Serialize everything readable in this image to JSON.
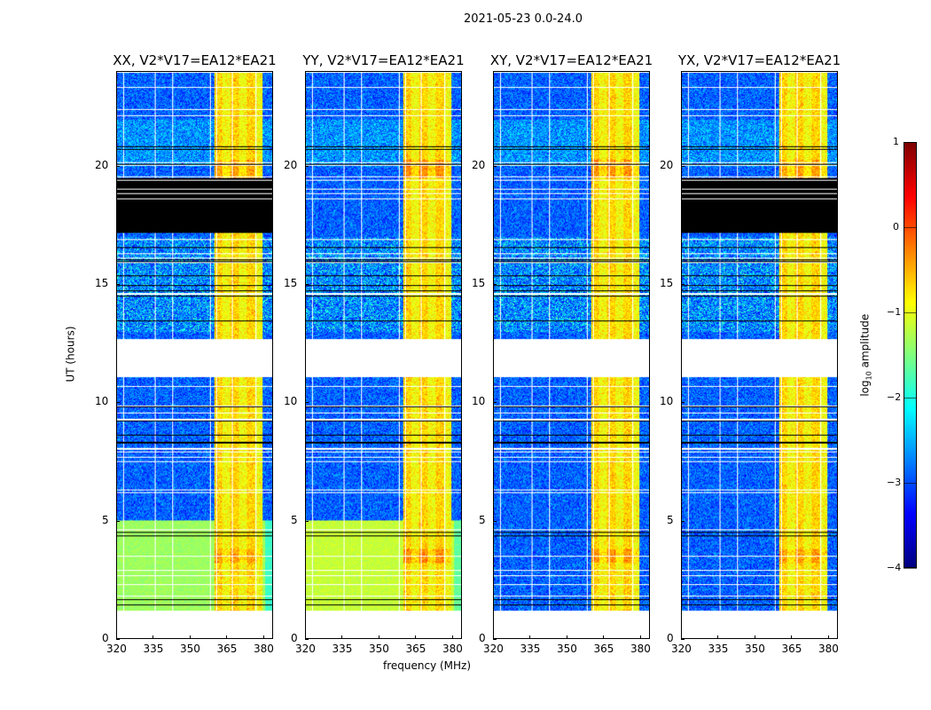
{
  "title": "2021-05-23 0.0-24.0",
  "chart_data": {
    "type": "heatmap",
    "xlabel": "frequency (MHz)",
    "ylabel": "UT (hours)",
    "xlim": [
      320,
      384
    ],
    "ylim": [
      0,
      24
    ],
    "xticks": [
      "320",
      "335",
      "350",
      "365",
      "380"
    ],
    "xtick_values": [
      320,
      335,
      350,
      365,
      380
    ],
    "yticks": [
      "0",
      "5",
      "10",
      "15",
      "20"
    ],
    "ytick_values": [
      0,
      5,
      10,
      15,
      20
    ],
    "colorbar": {
      "label": "log10 amplitude",
      "label_main": "log",
      "label_sub": "10",
      "label_rest": " amplitude",
      "range": [
        -4,
        1
      ],
      "ticks": [
        "1",
        "0",
        "−1",
        "−2",
        "−3",
        "−4"
      ],
      "tick_values": [
        1,
        0,
        -1,
        -2,
        -3,
        -4
      ],
      "colormap": "jet"
    },
    "panels": [
      {
        "title": "XX, V2*V17=EA12*EA21",
        "low_band_level": -1.5,
        "black_band": [
          17.2,
          19.5
        ],
        "rfi_peak": 0.4
      },
      {
        "title": "YY, V2*V17=EA12*EA21",
        "low_band_level": -1.3,
        "black_band": null,
        "rfi_peak": 0.6
      },
      {
        "title": "XY, V2*V17=EA12*EA21",
        "low_band_level": -2.9,
        "black_band": null,
        "rfi_peak": 0.5
      },
      {
        "title": "YX, V2*V17=EA12*EA21",
        "low_band_level": -2.9,
        "black_band": [
          17.2,
          19.5
        ],
        "rfi_peak": 0.4
      }
    ],
    "flagged_ut_ranges": [
      [
        0.05,
        1.2
      ],
      [
        11.1,
        12.7
      ]
    ],
    "background_level": -2.9,
    "rfi_band_mhz": [
      360,
      380
    ]
  }
}
